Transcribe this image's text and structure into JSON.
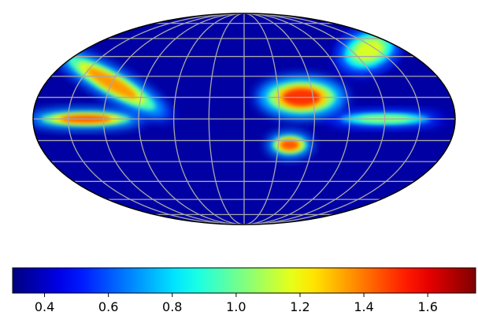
{
  "chart_data": {
    "type": "heatmap",
    "projection": "mollweide",
    "colormap": "jet",
    "grid": true,
    "colorbar": {
      "orientation": "horizontal",
      "placement": "bottom",
      "range": [
        0.3,
        1.75
      ],
      "ticks": [
        0.4,
        0.6,
        0.8,
        1.0,
        1.2,
        1.4,
        1.6
      ],
      "tick_labels": [
        "0.4",
        "0.6",
        "0.8",
        "1.0",
        "1.2",
        "1.4",
        "1.6"
      ]
    },
    "background_value": 0.35,
    "features": [
      {
        "region": "galactic-plane band (left)",
        "lon_deg": 135,
        "lat_deg": 0,
        "peak_value": 1.45
      },
      {
        "region": "galactic-plane band (right)",
        "lon_deg": -120,
        "lat_deg": 0,
        "peak_value": 1.05
      },
      {
        "region": "north lobe (center-right)",
        "lon_deg": -50,
        "lat_deg": 15,
        "peak_value": 1.5
      },
      {
        "region": "south blob (center)",
        "lon_deg": -40,
        "lat_deg": -18,
        "peak_value": 1.45
      },
      {
        "region": "north-west arc",
        "lon_deg": 120,
        "lat_deg": 25,
        "peak_value": 1.35
      },
      {
        "region": "north-east cap",
        "lon_deg": -140,
        "lat_deg": 50,
        "peak_value": 1.15
      }
    ]
  }
}
